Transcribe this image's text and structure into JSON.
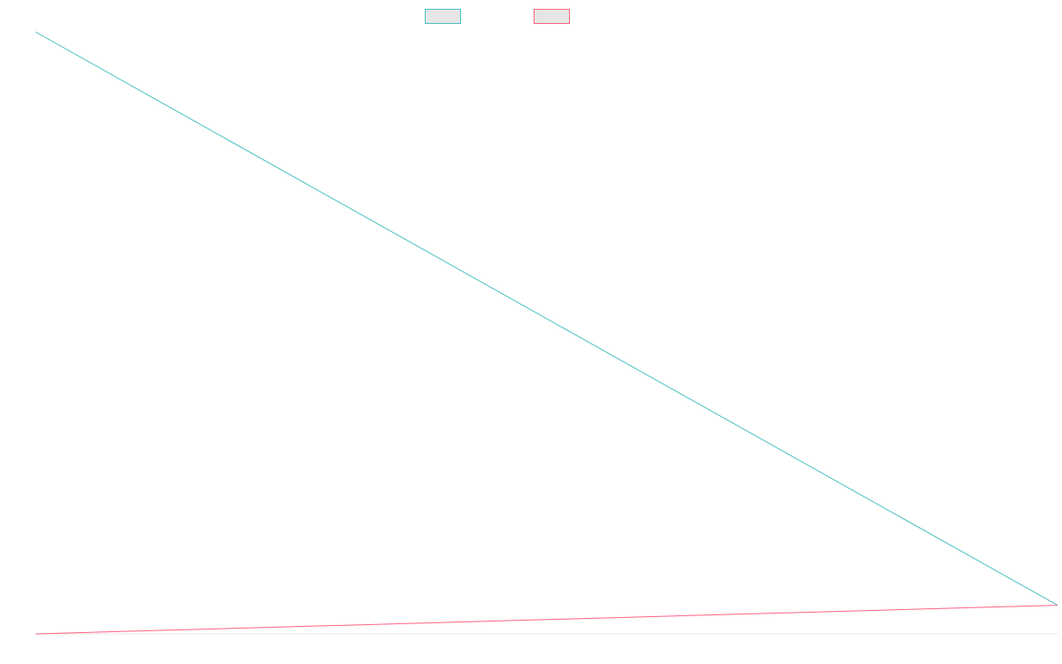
{
  "chart_data": {
    "type": "line",
    "x": [
      0,
      1
    ],
    "xlim": [
      0,
      1
    ],
    "ylim": [
      -1,
      20
    ],
    "grid": false,
    "legend": "top-center",
    "series": [
      {
        "name": "",
        "color": "#4bc0c0",
        "fill": "#e6e6e6",
        "values": [
          20,
          0
        ]
      },
      {
        "name": "",
        "color": "#ff6384",
        "fill": "#e6e6e6",
        "values": [
          -1,
          0
        ]
      }
    ]
  },
  "colors": {
    "baseline_axis": "#e5e5e5"
  }
}
